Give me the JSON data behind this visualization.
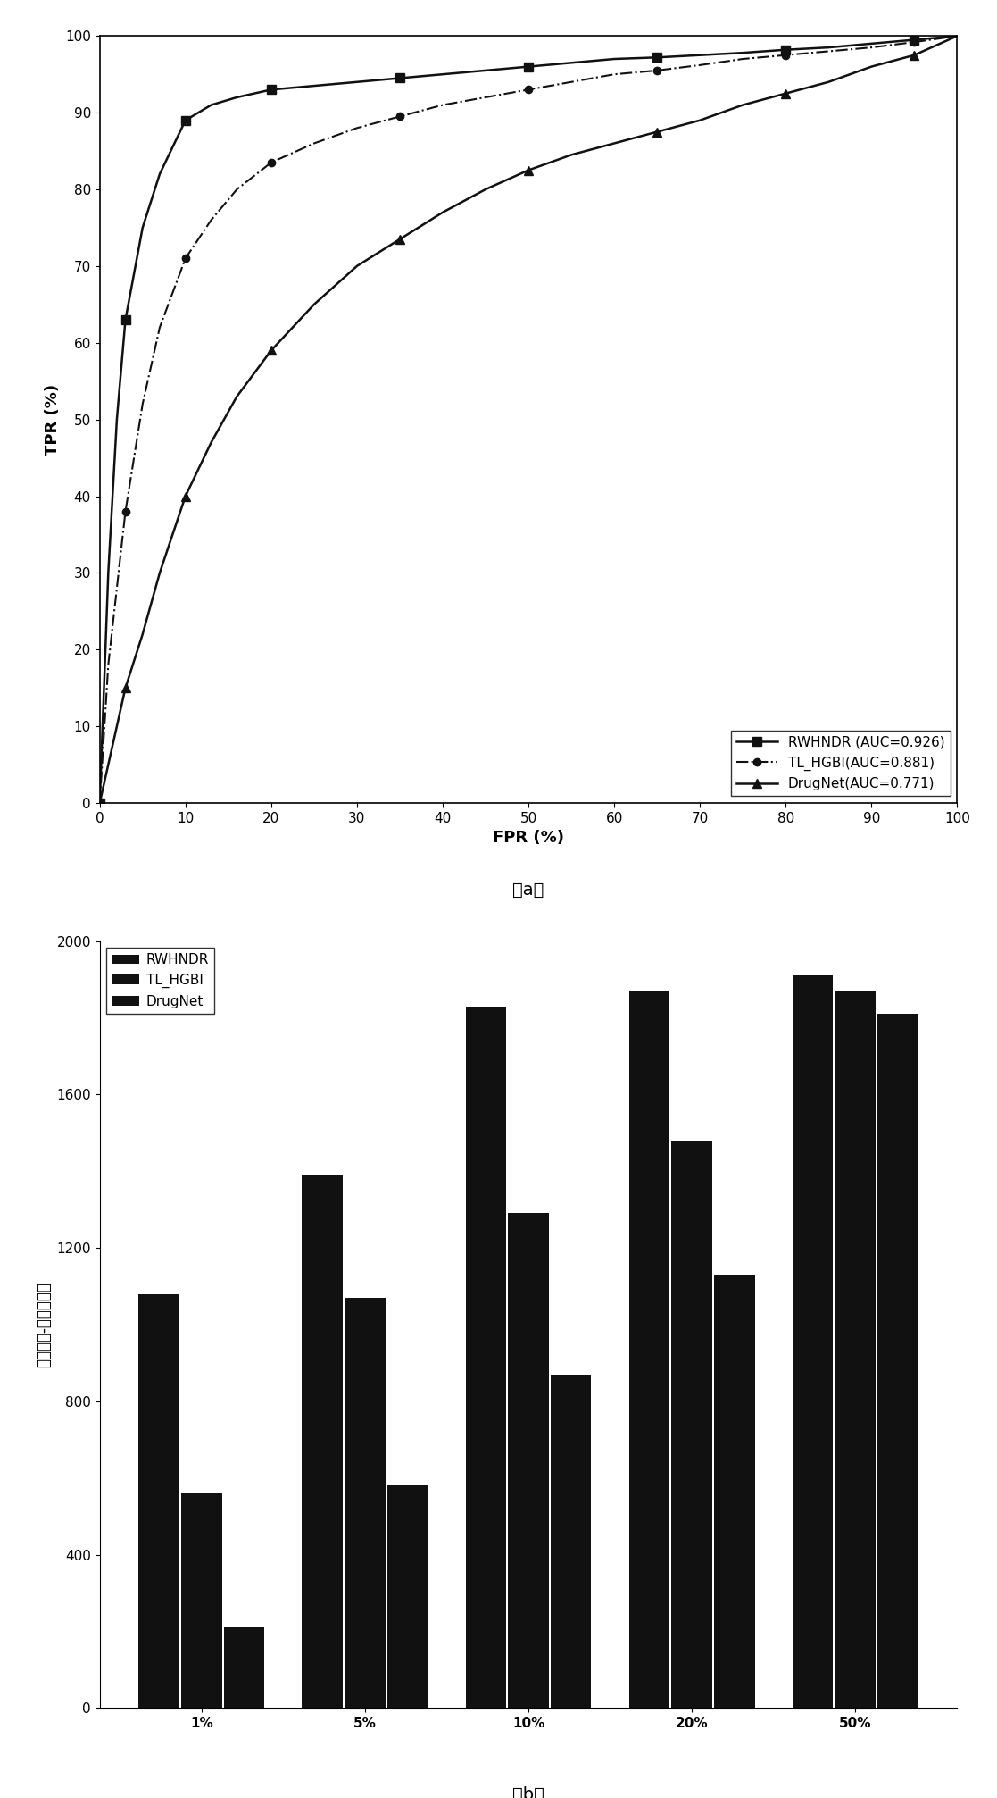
{
  "roc": {
    "rwhndr": {
      "label": "RWHNDR (AUC=0.926)",
      "marker": "s",
      "linestyle": "-",
      "color": "#111111",
      "fpr": [
        0,
        1,
        2,
        3,
        5,
        7,
        10,
        13,
        16,
        20,
        25,
        30,
        35,
        40,
        45,
        50,
        55,
        60,
        65,
        70,
        75,
        80,
        85,
        90,
        95,
        100
      ],
      "tpr": [
        0,
        30,
        50,
        63,
        75,
        82,
        89,
        91,
        92,
        93,
        93.5,
        94,
        94.5,
        95,
        95.5,
        96,
        96.5,
        97,
        97.2,
        97.5,
        97.8,
        98.2,
        98.5,
        99,
        99.5,
        100
      ]
    },
    "tl_hgbi": {
      "label": "TL_HGBI(AUC=0.881)",
      "marker": "o",
      "linestyle": "-.",
      "color": "#111111",
      "fpr": [
        0,
        1,
        2,
        3,
        5,
        7,
        10,
        13,
        16,
        20,
        25,
        30,
        35,
        40,
        45,
        50,
        55,
        60,
        65,
        70,
        75,
        80,
        85,
        90,
        95,
        100
      ],
      "tpr": [
        0,
        18,
        28,
        38,
        52,
        62,
        71,
        76,
        80,
        83.5,
        86,
        88,
        89.5,
        91,
        92,
        93,
        94,
        95,
        95.5,
        96.2,
        97,
        97.5,
        98,
        98.5,
        99.2,
        100
      ]
    },
    "drugnet": {
      "label": "DrugNet(AUC=0.771)",
      "marker": "^",
      "linestyle": "-",
      "color": "#111111",
      "fpr": [
        0,
        1,
        2,
        3,
        5,
        7,
        10,
        13,
        16,
        20,
        25,
        30,
        35,
        40,
        45,
        50,
        55,
        60,
        65,
        70,
        75,
        80,
        85,
        90,
        95,
        100
      ],
      "tpr": [
        0,
        5,
        10,
        15,
        22,
        30,
        40,
        47,
        53,
        59,
        65,
        70,
        73.5,
        77,
        80,
        82.5,
        84.5,
        86,
        87.5,
        89,
        91,
        92.5,
        94,
        96,
        97.5,
        100
      ]
    }
  },
  "bar": {
    "categories": [
      "1%",
      "5%",
      "10%",
      "20%",
      "50%"
    ],
    "rwhndr": [
      1080,
      1390,
      1830,
      1870,
      1910
    ],
    "tl_hgbi": [
      560,
      1070,
      1290,
      1480,
      1870
    ],
    "drugnet": [
      210,
      580,
      870,
      1130,
      1810
    ],
    "bar_color": "#111111",
    "ylabel": "已知疾病-药物关联数",
    "ylim": [
      0,
      2000
    ],
    "yticks": [
      0,
      400,
      800,
      1200,
      1600,
      2000
    ]
  },
  "background_color": "#ffffff",
  "label_a": "（a）",
  "label_b": "（b）"
}
